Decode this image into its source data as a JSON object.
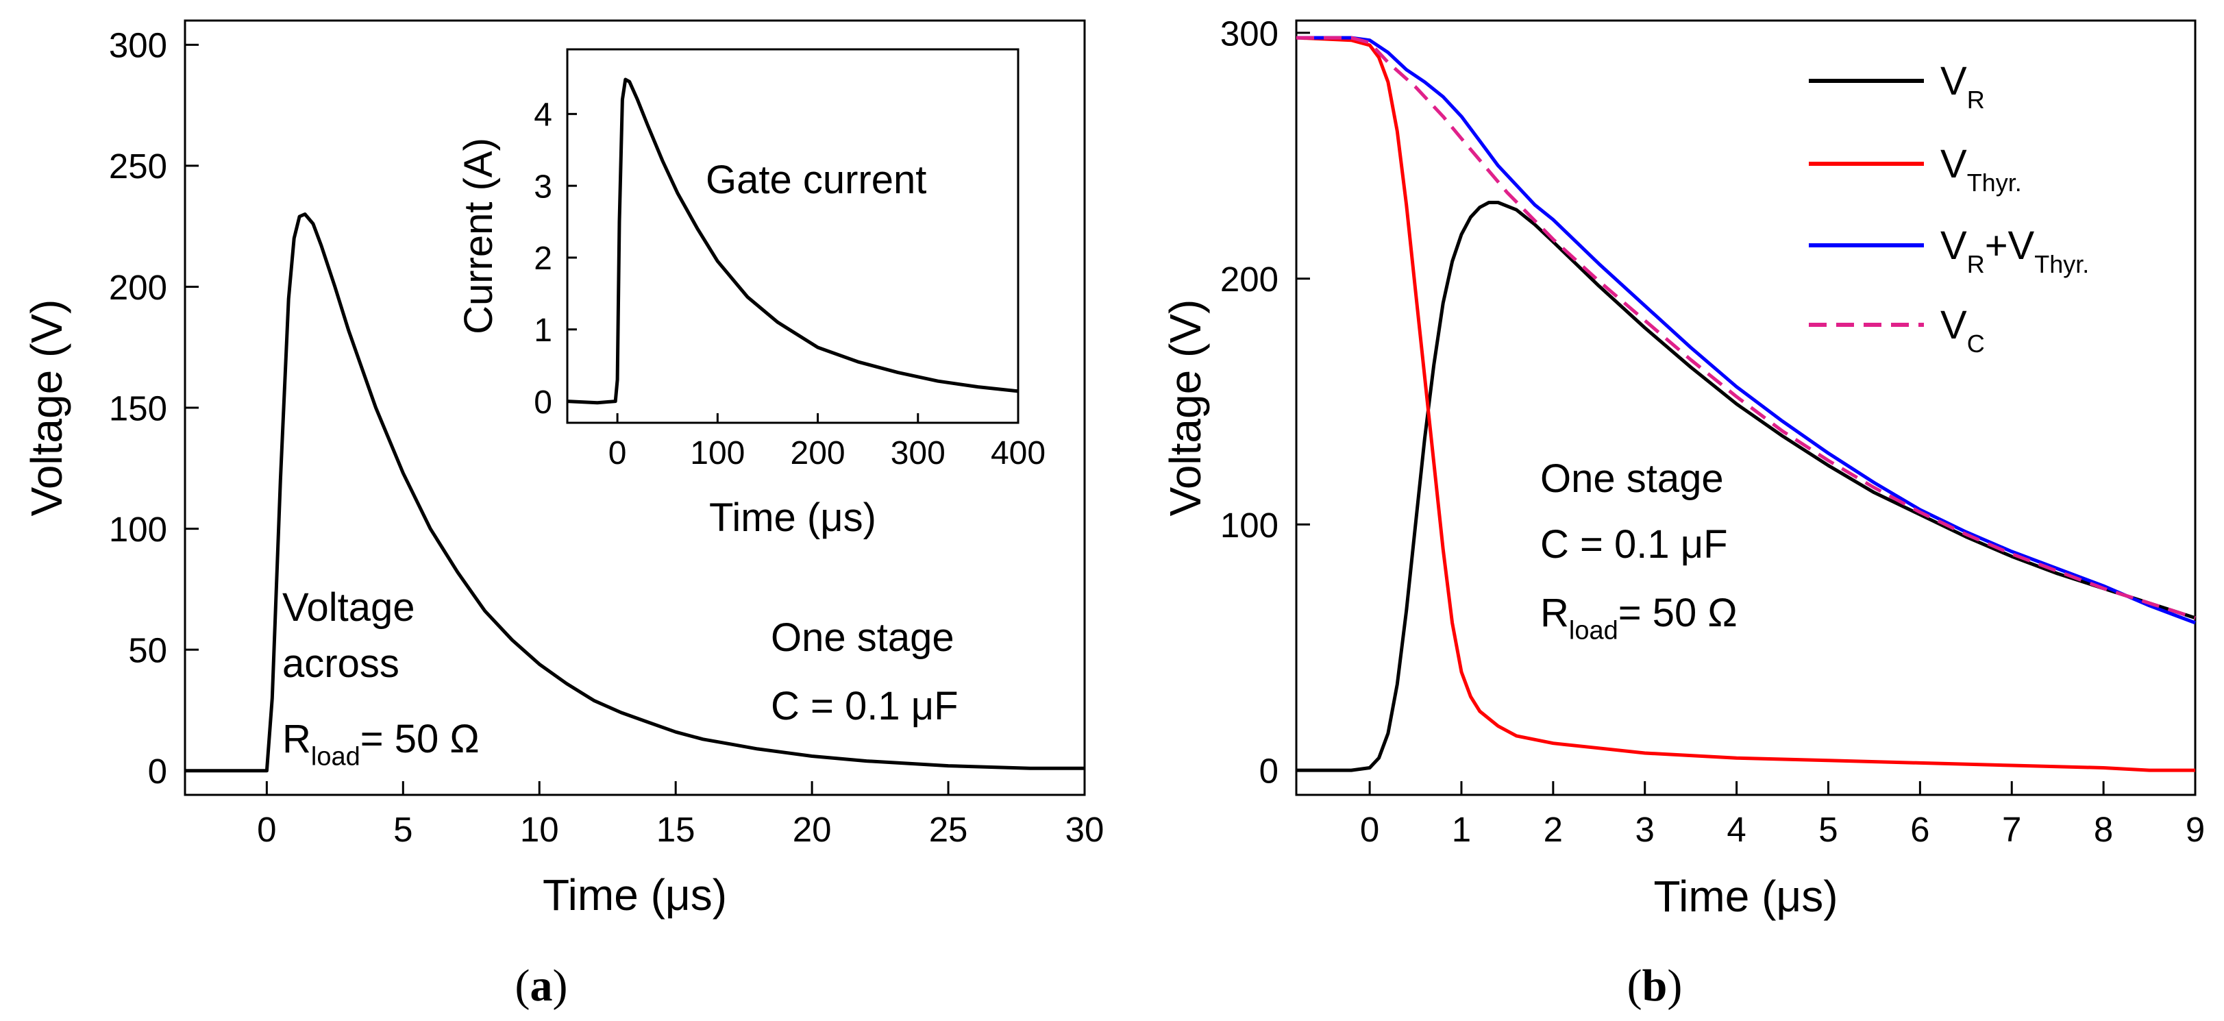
{
  "chart_data": [
    {
      "panel_label": {
        "open": "(",
        "letter": "a",
        "close": ")"
      },
      "type": "line",
      "xlabel": "Time (μs)",
      "ylabel": "Voltage (V)",
      "xlim": [
        -3,
        30
      ],
      "ylim": [
        -10,
        310
      ],
      "xticks": [
        0,
        5,
        10,
        15,
        20,
        25,
        30
      ],
      "yticks": [
        0,
        50,
        100,
        150,
        200,
        250,
        300
      ],
      "series": [
        {
          "name": "Voltage across Rload",
          "color": "#000000",
          "x": [
            -3,
            -1,
            0,
            0.2,
            0.5,
            0.8,
            1.0,
            1.2,
            1.4,
            1.7,
            2,
            2.5,
            3,
            4,
            5,
            6,
            7,
            8,
            9,
            10,
            11,
            12,
            13,
            14,
            15,
            16,
            17,
            18,
            20,
            22,
            25,
            28,
            30
          ],
          "y": [
            0,
            0,
            0,
            30,
            120,
            195,
            220,
            229,
            230,
            226,
            217,
            200,
            182,
            150,
            123,
            100,
            82,
            66,
            54,
            44,
            36,
            29,
            24,
            20,
            16,
            13,
            11,
            9,
            6,
            4,
            2,
            1,
            1
          ]
        }
      ],
      "annotations": {
        "voltage_line1": "Voltage",
        "voltage_line2": "across",
        "r_main": "R",
        "r_sub": "load",
        "r_value": "= 50 Ω",
        "stage": "One stage",
        "cap": "C = 0.1 μF"
      },
      "inset": {
        "type": "line",
        "title": "Gate current",
        "xlabel": "Time (μs)",
        "ylabel": "Current (A)",
        "xlim": [
          -50,
          400
        ],
        "ylim": [
          -0.3,
          4.9
        ],
        "xticks": [
          0,
          100,
          200,
          300,
          400
        ],
        "yticks": [
          0,
          1,
          2,
          3,
          4
        ],
        "series": [
          {
            "name": "Gate current",
            "color": "#000000",
            "x": [
              -50,
              -20,
              -2,
              0,
              2,
              5,
              8,
              12,
              20,
              30,
              45,
              60,
              80,
              100,
              130,
              160,
              200,
              240,
              280,
              320,
              360,
              400
            ],
            "y": [
              0.0,
              -0.02,
              0.0,
              0.3,
              2.5,
              4.2,
              4.48,
              4.45,
              4.2,
              3.85,
              3.35,
              2.9,
              2.4,
              1.95,
              1.45,
              1.1,
              0.75,
              0.55,
              0.4,
              0.28,
              0.2,
              0.14
            ]
          }
        ]
      }
    },
    {
      "panel_label": {
        "open": "(",
        "letter": "b",
        "close": ")"
      },
      "type": "line",
      "xlabel": "Time (μs)",
      "ylabel": "Voltage (V)",
      "xlim": [
        -0.8,
        9
      ],
      "ylim": [
        -10,
        305
      ],
      "xticks": [
        0,
        1,
        2,
        3,
        4,
        5,
        6,
        7,
        8,
        9
      ],
      "yticks": [
        0,
        100,
        200,
        300
      ],
      "series": [
        {
          "name": "V_R",
          "color": "#000000",
          "dash": false,
          "x": [
            -0.8,
            -0.2,
            0,
            0.1,
            0.2,
            0.3,
            0.4,
            0.5,
            0.6,
            0.7,
            0.8,
            0.9,
            1.0,
            1.1,
            1.2,
            1.3,
            1.4,
            1.6,
            1.8,
            2.0,
            2.5,
            3.0,
            3.5,
            4.0,
            4.5,
            5.0,
            5.5,
            6.0,
            6.5,
            7.0,
            7.5,
            8.0,
            8.5,
            9.0
          ],
          "y": [
            0,
            0,
            1,
            5,
            15,
            35,
            65,
            100,
            135,
            165,
            190,
            207,
            218,
            225,
            229,
            231,
            231,
            228,
            222,
            215,
            197,
            180,
            164,
            149,
            136,
            124,
            113,
            104,
            95,
            87,
            80,
            74,
            68,
            62
          ]
        },
        {
          "name": "V_Thyr.",
          "color": "#ff0000",
          "dash": false,
          "x": [
            -0.8,
            -0.2,
            0,
            0.1,
            0.2,
            0.3,
            0.4,
            0.5,
            0.6,
            0.7,
            0.8,
            0.9,
            1.0,
            1.1,
            1.2,
            1.4,
            1.6,
            2.0,
            2.5,
            3.0,
            4.0,
            5.0,
            6.0,
            7.0,
            8.0,
            8.5,
            9.0
          ],
          "y": [
            298,
            297,
            295,
            290,
            280,
            260,
            230,
            195,
            160,
            125,
            90,
            60,
            40,
            30,
            24,
            18,
            14,
            11,
            9,
            7,
            5,
            4,
            3,
            2,
            1,
            0,
            0
          ]
        },
        {
          "name": "V_R+V_Thyr.",
          "color": "#0000ff",
          "dash": false,
          "x": [
            -0.8,
            -0.2,
            0,
            0.2,
            0.4,
            0.6,
            0.8,
            1.0,
            1.2,
            1.4,
            1.6,
            1.8,
            2.0,
            2.5,
            3.0,
            3.5,
            4.0,
            4.5,
            5.0,
            5.5,
            6.0,
            6.5,
            7.0,
            7.5,
            8.0,
            8.5,
            9.0
          ],
          "y": [
            298,
            298,
            297,
            292,
            285,
            280,
            274,
            266,
            256,
            246,
            238,
            230,
            224,
            206,
            189,
            172,
            156,
            142,
            129,
            117,
            106,
            97,
            89,
            82,
            75,
            67,
            60
          ]
        },
        {
          "name": "V_C",
          "color": "#e0218a",
          "dash": true,
          "x": [
            -0.8,
            -0.2,
            0,
            0.2,
            0.5,
            0.8,
            1.0,
            1.5,
            2.0,
            2.5,
            3.0,
            3.5,
            4.0,
            4.5,
            5.0,
            5.5,
            6.0,
            6.5,
            7.0,
            7.5,
            8.0,
            8.5,
            9.0
          ],
          "y": [
            298,
            298,
            296,
            288,
            278,
            266,
            257,
            235,
            216,
            199,
            183,
            167,
            152,
            138,
            126,
            115,
            105,
            96,
            88,
            81,
            74,
            68,
            62
          ]
        }
      ],
      "legend": [
        {
          "main": "V",
          "sub": "R",
          "color": "#000000",
          "dash": false
        },
        {
          "main": "V",
          "sub": "Thyr.",
          "color": "#ff0000",
          "dash": false
        },
        {
          "main": "V",
          "sub": "R",
          "mid": "+V",
          "sub2": "Thyr.",
          "color": "#0000ff",
          "dash": false
        },
        {
          "main": "V",
          "sub": "C",
          "color": "#e0218a",
          "dash": true
        }
      ],
      "annotations": {
        "stage": "One stage",
        "cap": "C = 0.1 μF",
        "r_main": "R",
        "r_sub": "load",
        "r_value": "= 50 Ω"
      }
    }
  ]
}
